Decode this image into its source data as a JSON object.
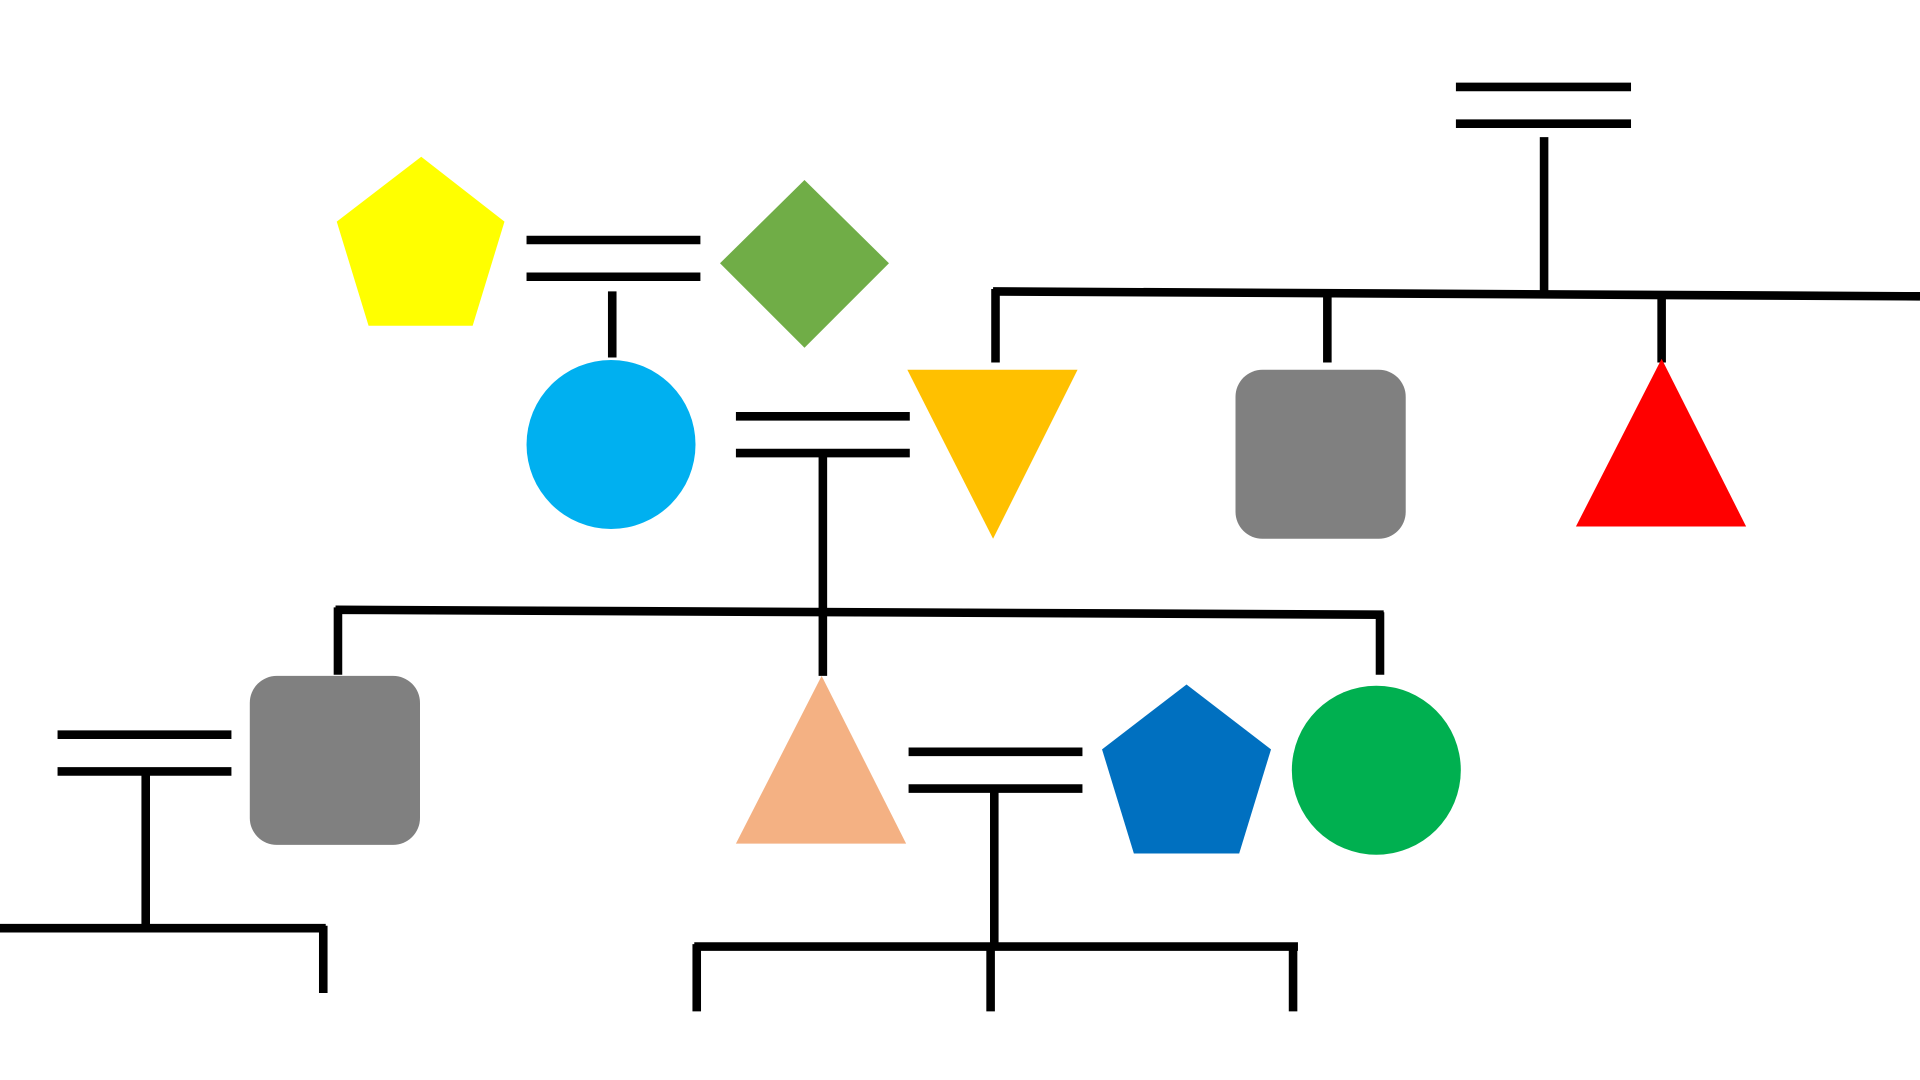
{
  "diagram": {
    "kind": "family-tree",
    "nodes": [
      {
        "id": "yellow-pentagon",
        "shape": "pentagon",
        "color": "#FFFF00"
      },
      {
        "id": "green-diamond",
        "shape": "diamond",
        "color": "#70AD47"
      },
      {
        "id": "sky-circle",
        "shape": "circle",
        "color": "#00B0F0"
      },
      {
        "id": "orange-down-triangle",
        "shape": "triangle-down",
        "color": "#FFC000"
      },
      {
        "id": "gray-square-top",
        "shape": "rounded-square",
        "color": "#808080"
      },
      {
        "id": "red-triangle",
        "shape": "triangle-up",
        "color": "#FF0000"
      },
      {
        "id": "gray-square-bottom",
        "shape": "rounded-square",
        "color": "#808080"
      },
      {
        "id": "peach-triangle",
        "shape": "triangle-up",
        "color": "#F4B183"
      },
      {
        "id": "blue-pentagon",
        "shape": "pentagon",
        "color": "#0070C0"
      },
      {
        "id": "green-circle",
        "shape": "circle",
        "color": "#00B050"
      }
    ],
    "marriages": [
      {
        "id": "top-right-couple",
        "partners": [],
        "children": [
          "orange-down-triangle",
          "gray-square-top",
          "red-triangle",
          "offscreen-right-child"
        ]
      },
      {
        "id": "pentagon-diamond-couple",
        "partners": [
          "yellow-pentagon",
          "green-diamond"
        ],
        "children": [
          "sky-circle"
        ]
      },
      {
        "id": "circle-triangle-couple",
        "partners": [
          "sky-circle",
          "orange-down-triangle"
        ],
        "children": [
          "gray-square-bottom",
          "peach-triangle",
          "green-circle"
        ]
      },
      {
        "id": "left-couple",
        "partners": [
          "gray-square-bottom"
        ],
        "children": [
          "offscreen-left-child",
          "unknown-child-left"
        ]
      },
      {
        "id": "bottom-couple",
        "partners": [
          "peach-triangle",
          "blue-pentagon"
        ],
        "children": [
          "unknown-child-1",
          "unknown-child-2",
          "unknown-child-3"
        ]
      }
    ],
    "line_color": "#000000"
  }
}
